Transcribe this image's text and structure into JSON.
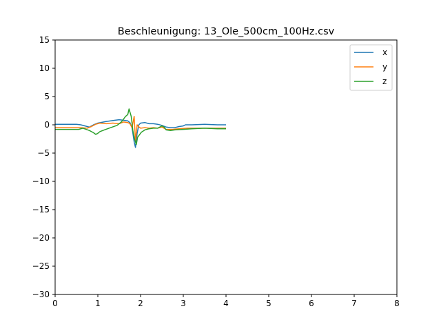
{
  "chart_data": {
    "type": "line",
    "title": "Beschleunigung: 13_Ole_500cm_100Hz.csv",
    "xlabel": "",
    "ylabel": "",
    "xlim": [
      0,
      8
    ],
    "ylim": [
      -30,
      15
    ],
    "xticks": [
      0,
      1,
      2,
      3,
      4,
      5,
      6,
      7,
      8
    ],
    "yticks": [
      15,
      10,
      5,
      0,
      -5,
      -10,
      -15,
      -20,
      -25,
      -30
    ],
    "grid": false,
    "legend_position": "top-right",
    "series": [
      {
        "name": "x",
        "color": "#1f77b4",
        "points": [
          [
            0,
            0.1
          ],
          [
            0.3,
            0.1
          ],
          [
            0.5,
            0.1
          ],
          [
            0.6,
            0
          ],
          [
            0.7,
            -0.2
          ],
          [
            0.8,
            -0.4
          ],
          [
            0.9,
            0
          ],
          [
            1.0,
            0.3
          ],
          [
            1.2,
            0.6
          ],
          [
            1.4,
            0.8
          ],
          [
            1.5,
            0.9
          ],
          [
            1.6,
            0.8
          ],
          [
            1.7,
            0.7
          ],
          [
            1.75,
            0.4
          ],
          [
            1.8,
            -0.5
          ],
          [
            1.85,
            -3.0
          ],
          [
            1.88,
            -4.0
          ],
          [
            1.92,
            -1.5
          ],
          [
            1.96,
            0
          ],
          [
            2.0,
            0.3
          ],
          [
            2.1,
            0.4
          ],
          [
            2.2,
            0.2
          ],
          [
            2.3,
            0.2
          ],
          [
            2.4,
            0.1
          ],
          [
            2.5,
            -0.1
          ],
          [
            2.6,
            -0.4
          ],
          [
            2.7,
            -0.5
          ],
          [
            2.8,
            -0.5
          ],
          [
            2.9,
            -0.3
          ],
          [
            3.0,
            -0.2
          ],
          [
            3.05,
            0
          ],
          [
            3.2,
            0
          ],
          [
            3.5,
            0.1
          ],
          [
            3.8,
            0
          ],
          [
            4.0,
            0
          ]
        ]
      },
      {
        "name": "y",
        "color": "#ff7f0e",
        "points": [
          [
            0,
            -0.5
          ],
          [
            0.3,
            -0.5
          ],
          [
            0.6,
            -0.5
          ],
          [
            0.75,
            -0.6
          ],
          [
            0.85,
            -0.3
          ],
          [
            0.95,
            0.1
          ],
          [
            1.05,
            0.3
          ],
          [
            1.2,
            0.2
          ],
          [
            1.35,
            0.3
          ],
          [
            1.5,
            0.2
          ],
          [
            1.6,
            0.5
          ],
          [
            1.7,
            0.4
          ],
          [
            1.75,
            0.2
          ],
          [
            1.8,
            -0.5
          ],
          [
            1.85,
            1.5
          ],
          [
            1.88,
            -2.8
          ],
          [
            1.92,
            0
          ],
          [
            1.95,
            -0.3
          ],
          [
            2.0,
            -0.6
          ],
          [
            2.1,
            -0.5
          ],
          [
            2.2,
            -0.6
          ],
          [
            2.3,
            -0.5
          ],
          [
            2.4,
            -0.6
          ],
          [
            2.5,
            -0.4
          ],
          [
            2.6,
            -0.8
          ],
          [
            2.75,
            -0.8
          ],
          [
            2.9,
            -0.7
          ],
          [
            3.1,
            -0.6
          ],
          [
            3.5,
            -0.6
          ],
          [
            4.0,
            -0.6
          ]
        ]
      },
      {
        "name": "z",
        "color": "#2ca02c",
        "points": [
          [
            0,
            -0.8
          ],
          [
            0.3,
            -0.8
          ],
          [
            0.55,
            -0.8
          ],
          [
            0.65,
            -0.6
          ],
          [
            0.8,
            -1.0
          ],
          [
            0.9,
            -1.4
          ],
          [
            0.95,
            -1.7
          ],
          [
            1.0,
            -1.5
          ],
          [
            1.05,
            -1.2
          ],
          [
            1.15,
            -0.9
          ],
          [
            1.3,
            -0.5
          ],
          [
            1.45,
            -0.1
          ],
          [
            1.55,
            0.5
          ],
          [
            1.65,
            1.5
          ],
          [
            1.7,
            1.8
          ],
          [
            1.73,
            2.8
          ],
          [
            1.78,
            1.5
          ],
          [
            1.82,
            -1.0
          ],
          [
            1.86,
            -2.5
          ],
          [
            1.9,
            -3.5
          ],
          [
            1.93,
            -2.2
          ],
          [
            1.97,
            -1.8
          ],
          [
            2.02,
            -1.3
          ],
          [
            2.1,
            -0.9
          ],
          [
            2.2,
            -0.7
          ],
          [
            2.3,
            -0.6
          ],
          [
            2.4,
            -0.6
          ],
          [
            2.5,
            -0.2
          ],
          [
            2.55,
            -0.4
          ],
          [
            2.6,
            -0.9
          ],
          [
            2.7,
            -1.0
          ],
          [
            2.8,
            -0.9
          ],
          [
            3.0,
            -0.8
          ],
          [
            3.2,
            -0.7
          ],
          [
            3.5,
            -0.6
          ],
          [
            3.8,
            -0.7
          ],
          [
            4.0,
            -0.7
          ]
        ]
      }
    ]
  }
}
